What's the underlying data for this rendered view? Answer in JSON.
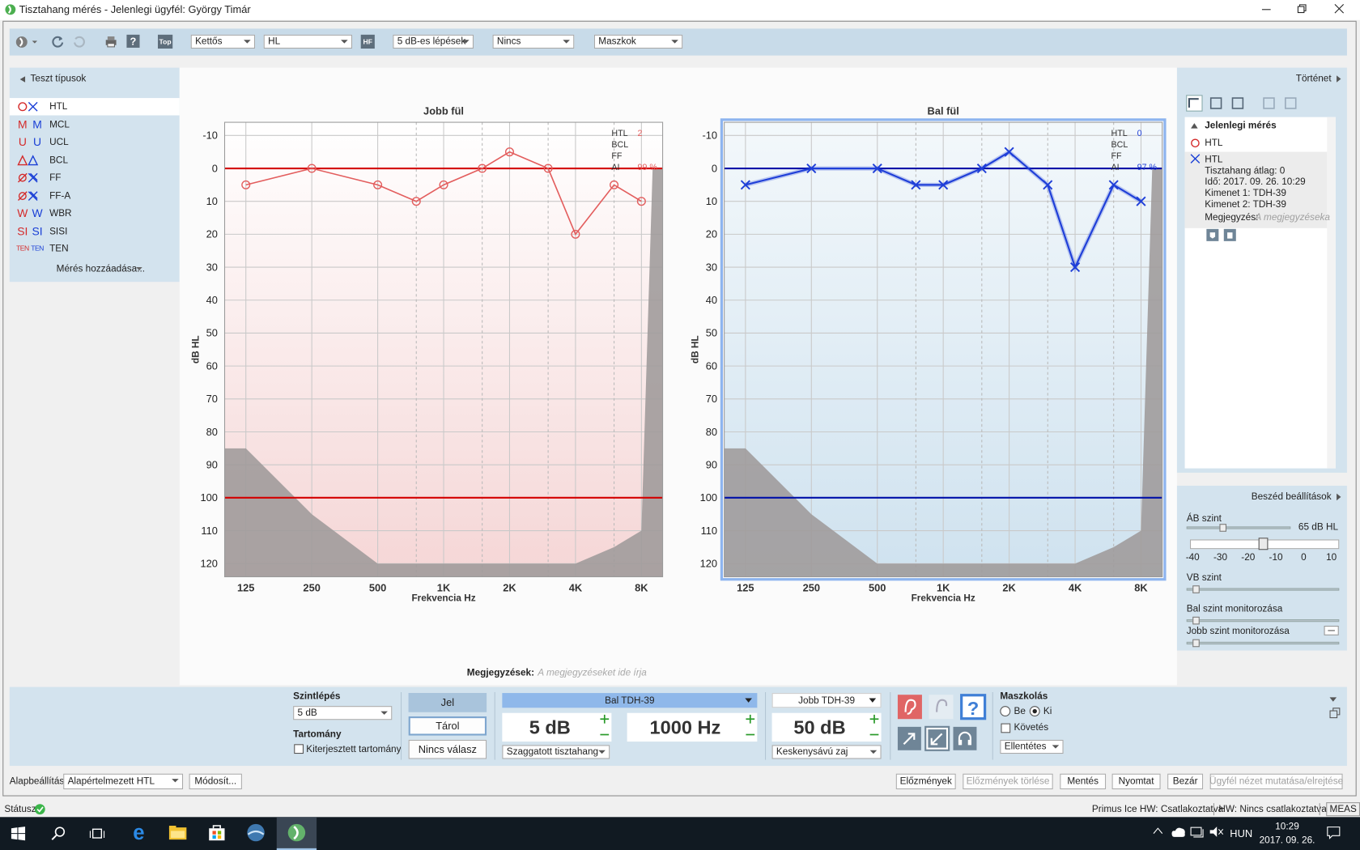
{
  "window": {
    "title": "Tisztahang mérés - Jelenlegi ügyfél: György Timár"
  },
  "toolbar": {
    "top_button": "Top",
    "hf_button": "HF",
    "dropdowns": [
      "Kettős",
      "HL",
      "5 dB-es lépések",
      "Nincs",
      "Maszkok"
    ]
  },
  "test_types": {
    "title": "Teszt típusok",
    "items": [
      {
        "name": "HTL"
      },
      {
        "name": "MCL",
        "symbol": "M"
      },
      {
        "name": "UCL",
        "symbol": "U"
      },
      {
        "name": "BCL"
      },
      {
        "name": "FF"
      },
      {
        "name": "FF-A"
      },
      {
        "name": "WBR",
        "symbol": "W"
      },
      {
        "name": "SISI",
        "symbol": "SI"
      },
      {
        "name": "TEN",
        "symbol": "TEN"
      }
    ],
    "add": "Mérés hozzáadása..."
  },
  "history": {
    "title": "Történet",
    "current": "Jelenlegi mérés",
    "entries": [
      "HTL",
      "HTL"
    ],
    "details": [
      "Tisztahang átlag:  0",
      "Idő:  2017. 09. 26. 10:29",
      "Kimenet 1:  TDH-39",
      "Kimenet 2:  TDH-39"
    ],
    "note_label": "Megjegyzés:",
    "note_placeholder": "A megjegyzéseka"
  },
  "speech": {
    "title": "Beszéd beállítások",
    "ab_label": "ÁB szint",
    "ab_value": "65 dB HL",
    "scale": [
      -40,
      -30,
      -20,
      -10,
      0,
      10
    ],
    "vb_label": "VB szint",
    "left_monitor": "Bal szint monitorozása",
    "right_monitor": "Jobb szint monitorozása"
  },
  "notes": {
    "label": "Megjegyzések:",
    "placeholder": "A megjegyzéseket ide írja"
  },
  "controls": {
    "step_label": "Szintlépés",
    "step_value": "5 dB",
    "range_label": "Tartomány",
    "extended_range": "Kiterjesztett tartomány",
    "signal": "Jel",
    "store": "Tárol",
    "no_response": "Nincs válasz",
    "left_output": "Bal TDH-39",
    "left_level": "5 dB",
    "frequency": "1000 Hz",
    "left_stimulus": "Szaggatott tisztahang",
    "right_output": "Jobb TDH-39",
    "right_level": "50 dB",
    "right_stimulus": "Keskenysávú zaj",
    "masking_label": "Maszkolás",
    "masking_on": "Be",
    "masking_off": "Ki",
    "tracking": "Követés",
    "contra": "Ellentétes"
  },
  "footer": {
    "preset_label": "Alapbeállítás",
    "preset": "Alapértelmezett HTL",
    "modify": "Módosít...",
    "buttons": [
      "Előzmények",
      "Előzmények törlése",
      "Mentés",
      "Nyomtat",
      "Bezár",
      "Ügyfél nézet mutatása/elrejtése"
    ]
  },
  "status": {
    "label": "Státusz",
    "primus": "Primus Ice HW:  Csatlakoztatva",
    "hw": "HW:  Nincs csatlakoztatva",
    "meas": "MEAS"
  },
  "taskbar": {
    "language": "HUN",
    "time": "10:29",
    "date": "2017. 09. 26."
  },
  "chart_data": [
    {
      "type": "line",
      "title": "Jobb fül",
      "x_label": "Frekvencia Hz",
      "y_label": "dB HL",
      "log_x": true,
      "y_inverted": true,
      "x": [
        125,
        250,
        500,
        750,
        1000,
        1500,
        2000,
        3000,
        4000,
        6000,
        8000
      ],
      "series": [
        {
          "color": "#e35d5d",
          "marker": "circle",
          "values": [
            5,
            0,
            5,
            10,
            5,
            0,
            -5,
            0,
            20,
            5,
            10
          ]
        }
      ],
      "xlim": [
        100,
        10000
      ],
      "ylim": [
        -14,
        124
      ],
      "xticks": [
        125,
        250,
        500,
        {
          "value": 1000,
          "label": "1K"
        },
        {
          "value": 2000,
          "label": "2K"
        },
        {
          "value": 4000,
          "label": "4K"
        },
        {
          "value": 8000,
          "label": "8K"
        }
      ],
      "x_minor": [
        750,
        1500,
        3000,
        6000
      ],
      "yticks": [
        -10,
        0,
        10,
        20,
        30,
        40,
        50,
        60,
        70,
        80,
        90,
        100,
        110,
        120
      ],
      "reference_lines": [
        0,
        100
      ],
      "reference_color": "#d40000",
      "limit": {
        "x": [
          100,
          125,
          250,
          500,
          4000,
          6000,
          8000,
          9000,
          10000
        ],
        "y": [
          85,
          85,
          105,
          120,
          120,
          115,
          110,
          0,
          0
        ]
      },
      "info": [
        {
          "label": "HTL",
          "value": "2"
        },
        {
          "label": "BCL"
        },
        {
          "label": "FF"
        },
        {
          "label": "AI",
          "value": "99 %"
        }
      ],
      "background": [
        "#ffffff",
        "#f5d6d6"
      ],
      "selected": false
    },
    {
      "type": "line",
      "title": "Bal fül",
      "x_label": "Frekvencia Hz",
      "y_label": "dB HL",
      "log_x": true,
      "y_inverted": true,
      "x": [
        125,
        250,
        500,
        750,
        1000,
        1500,
        2000,
        3000,
        4000,
        6000,
        8000
      ],
      "series": [
        {
          "color": "#1f3fd8",
          "marker": "x",
          "values": [
            5,
            0,
            0,
            5,
            5,
            0,
            -5,
            5,
            30,
            5,
            10
          ]
        }
      ],
      "xlim": [
        100,
        10000
      ],
      "ylim": [
        -14,
        124
      ],
      "xticks": [
        125,
        250,
        500,
        {
          "value": 1000,
          "label": "1K"
        },
        {
          "value": 2000,
          "label": "2K"
        },
        {
          "value": 4000,
          "label": "4K"
        },
        {
          "value": 8000,
          "label": "8K"
        }
      ],
      "x_minor": [
        750,
        1500,
        3000,
        6000
      ],
      "yticks": [
        -10,
        0,
        10,
        20,
        30,
        40,
        50,
        60,
        70,
        80,
        90,
        100,
        110,
        120
      ],
      "reference_lines": [
        0,
        100
      ],
      "reference_color": "#0010a8",
      "limit": {
        "x": [
          100,
          125,
          250,
          500,
          4000,
          6000,
          8000,
          9000,
          10000
        ],
        "y": [
          85,
          85,
          105,
          120,
          120,
          115,
          110,
          0,
          0
        ]
      },
      "info": [
        {
          "label": "HTL",
          "value": "0"
        },
        {
          "label": "BCL"
        },
        {
          "label": "FF"
        },
        {
          "label": "AI",
          "value": "97 %"
        }
      ],
      "background": [
        "#f3f8fb",
        "#cfe2ef"
      ],
      "selected": true
    }
  ]
}
